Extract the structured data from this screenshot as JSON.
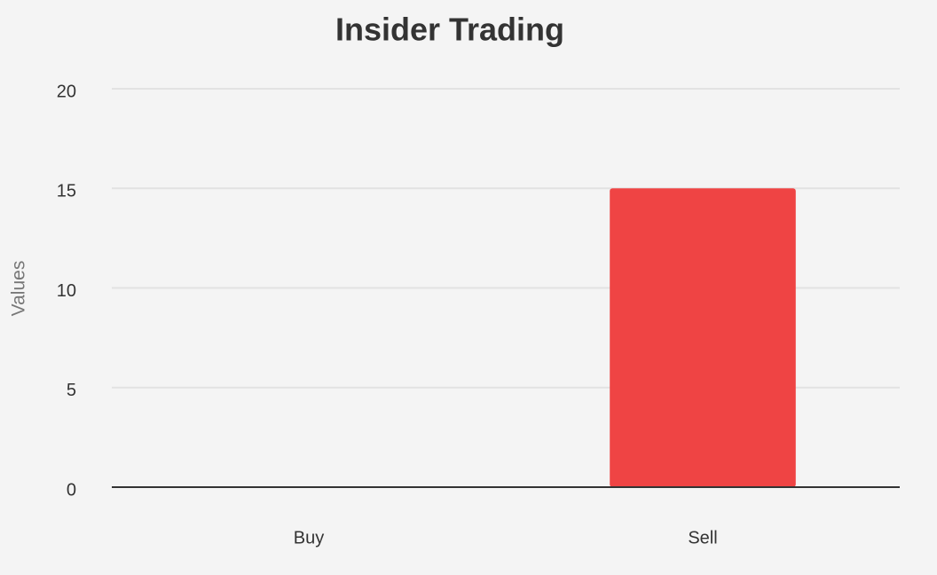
{
  "chart_data": {
    "type": "bar",
    "title": "Insider Trading",
    "y_label": "Values",
    "categories": [
      "Buy",
      "Sell"
    ],
    "values": [
      0,
      15
    ],
    "color": "#ef4444",
    "ylim": [
      0,
      20
    ],
    "yticks": [
      0,
      5,
      10,
      15,
      20
    ],
    "grid": true
  }
}
